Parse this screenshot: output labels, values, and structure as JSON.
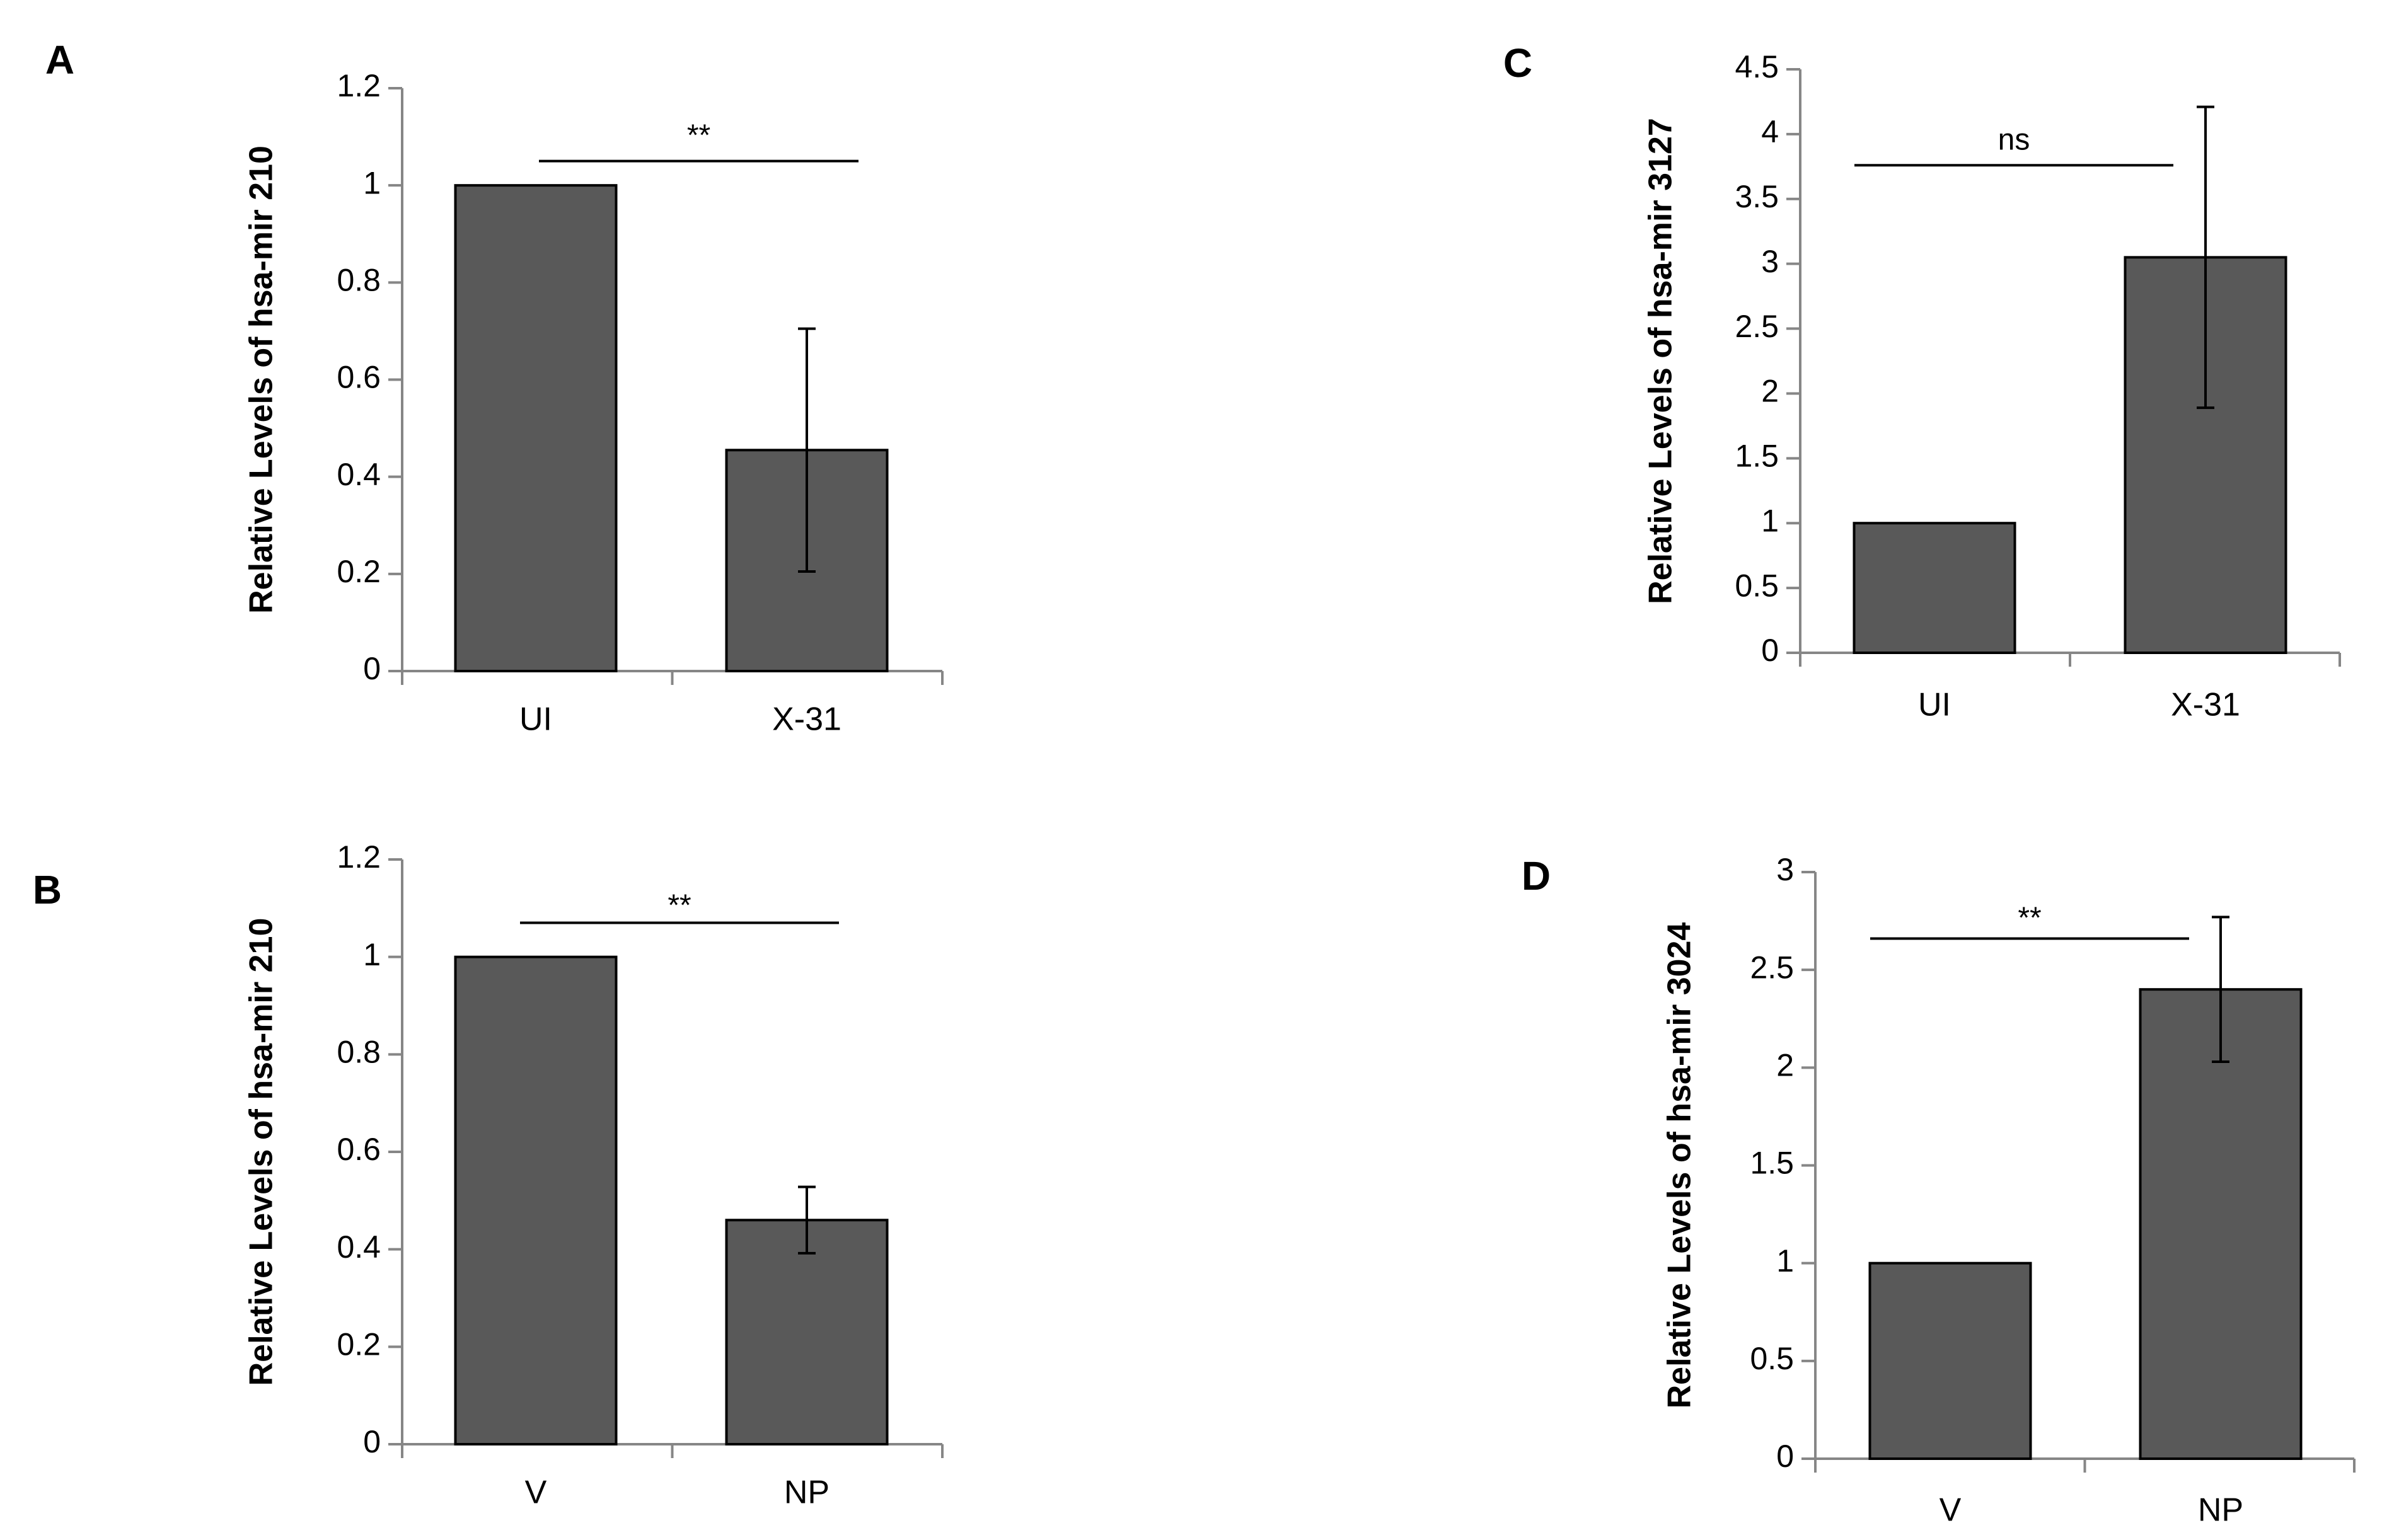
{
  "colors": {
    "bar_fill": "#595959",
    "bar_stroke": "#000000",
    "axis": "#868686",
    "text": "#000000"
  },
  "chart_data": [
    {
      "panel_label": "A",
      "type": "bar",
      "categories": [
        "UI",
        "X-31"
      ],
      "values": [
        1.0,
        0.455
      ],
      "error": [
        null,
        0.25
      ],
      "ylabel": "Relative Levels of hsa-mir 210",
      "ylim": [
        0,
        1.2
      ],
      "ytick_values": [
        0,
        0.2,
        0.4,
        0.6,
        0.8,
        1,
        1.2
      ],
      "ytick_labels": [
        "0",
        "0.2",
        "0.4",
        "0.6",
        "0.8",
        "1",
        "1.2"
      ],
      "significance": {
        "label": "**",
        "bracket_y": 1.05
      }
    },
    {
      "panel_label": "C",
      "type": "bar",
      "categories": [
        "UI",
        "X-31"
      ],
      "values": [
        1.0,
        3.05
      ],
      "error": [
        null,
        1.16
      ],
      "ylabel": "Relative Levels of hsa-mir 3127",
      "ylim": [
        0,
        4.5
      ],
      "ytick_values": [
        0,
        0.5,
        1,
        1.5,
        2,
        2.5,
        3,
        3.5,
        4,
        4.5
      ],
      "ytick_labels": [
        "0",
        "0.5",
        "1",
        "1.5",
        "2",
        "2.5",
        "3",
        "3.5",
        "4",
        "4.5"
      ],
      "significance": {
        "label": "ns",
        "bracket_y": 3.76
      }
    },
    {
      "panel_label": "B",
      "type": "bar",
      "categories": [
        "V",
        "NP"
      ],
      "values": [
        1.0,
        0.46
      ],
      "error": [
        null,
        0.068
      ],
      "ylabel": "Relative Levels of hsa-mir 210",
      "ylim": [
        0,
        1.2
      ],
      "ytick_values": [
        0,
        0.2,
        0.4,
        0.6,
        0.8,
        1,
        1.2
      ],
      "ytick_labels": [
        "0",
        "0.2",
        "0.4",
        "0.6",
        "0.8",
        "1",
        "1.2"
      ],
      "significance": {
        "label": "**",
        "bracket_y": 1.07
      }
    },
    {
      "panel_label": "D",
      "type": "bar",
      "categories": [
        "V",
        "NP"
      ],
      "values": [
        1.0,
        2.4
      ],
      "error": [
        null,
        0.37
      ],
      "ylabel": "Relative Levels of hsa-mir 3024",
      "ylim": [
        0,
        3
      ],
      "ytick_values": [
        0,
        0.5,
        1,
        1.5,
        2,
        2.5,
        3
      ],
      "ytick_labels": [
        "0",
        "0.5",
        "1",
        "1.5",
        "2",
        "2.5",
        "3"
      ],
      "significance": {
        "label": "**",
        "bracket_y": 2.66
      }
    }
  ]
}
